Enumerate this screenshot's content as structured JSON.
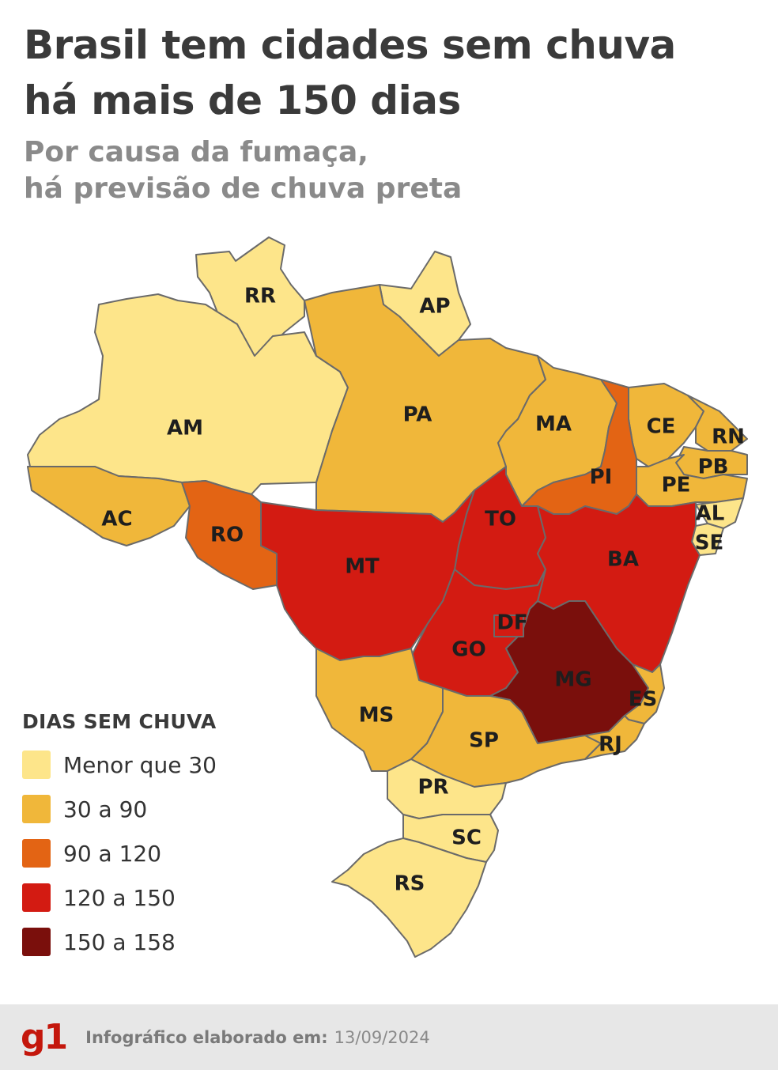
{
  "header": {
    "title_line1": "Brasil tem cidades sem chuva",
    "title_line2": "há mais de 150 dias",
    "subtitle_line1": "Por causa da fumaça,",
    "subtitle_line2": "há previsão de chuva preta"
  },
  "map": {
    "states": [
      {
        "abbr": "RR",
        "category": 0
      },
      {
        "abbr": "AP",
        "category": 0
      },
      {
        "abbr": "AM",
        "category": 0
      },
      {
        "abbr": "PA",
        "category": 1
      },
      {
        "abbr": "MA",
        "category": 1
      },
      {
        "abbr": "CE",
        "category": 1
      },
      {
        "abbr": "RN",
        "category": 1
      },
      {
        "abbr": "PB",
        "category": 1
      },
      {
        "abbr": "PE",
        "category": 1
      },
      {
        "abbr": "AL",
        "category": 0
      },
      {
        "abbr": "SE",
        "category": 0
      },
      {
        "abbr": "PI",
        "category": 2
      },
      {
        "abbr": "AC",
        "category": 1
      },
      {
        "abbr": "RO",
        "category": 2
      },
      {
        "abbr": "TO",
        "category": 3
      },
      {
        "abbr": "BA",
        "category": 3
      },
      {
        "abbr": "MT",
        "category": 3
      },
      {
        "abbr": "DF",
        "category": 3
      },
      {
        "abbr": "GO",
        "category": 3
      },
      {
        "abbr": "MG",
        "category": 4
      },
      {
        "abbr": "ES",
        "category": 1
      },
      {
        "abbr": "MS",
        "category": 1
      },
      {
        "abbr": "SP",
        "category": 1
      },
      {
        "abbr": "RJ",
        "category": 1
      },
      {
        "abbr": "PR",
        "category": 0
      },
      {
        "abbr": "SC",
        "category": 0
      },
      {
        "abbr": "RS",
        "category": 0
      }
    ]
  },
  "legend": {
    "title": "DIAS SEM CHUVA",
    "items": [
      {
        "label": "Menor que 30",
        "color": "#fde58a"
      },
      {
        "label": "30 a 90",
        "color": "#f0b73a"
      },
      {
        "label": "90 a 120",
        "color": "#e36414"
      },
      {
        "label": "120 a 150",
        "color": "#d31b12"
      },
      {
        "label": "150 a 158",
        "color": "#7a0f0c"
      }
    ]
  },
  "footer": {
    "logo": "g1",
    "label": "Infográfico elaborado em:",
    "date": "13/09/2024"
  },
  "colors": {
    "base": "#fdf5c4",
    "border": "#6a6a6a"
  }
}
